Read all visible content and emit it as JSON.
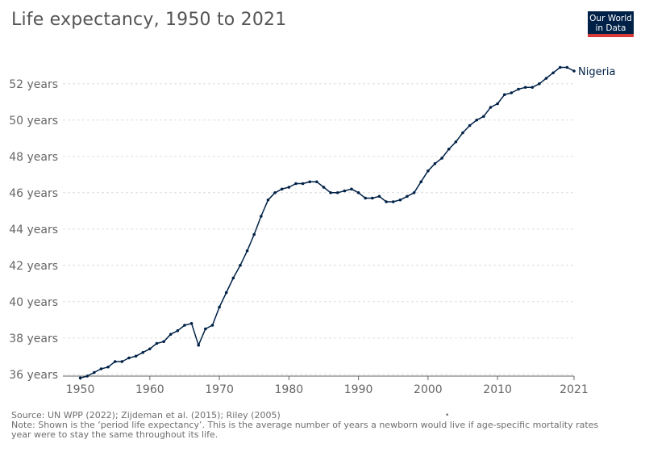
{
  "header": {
    "title": "Life expectancy, 1950 to 2021",
    "logo_line1": "Our World",
    "logo_line2": "in Data"
  },
  "footer": {
    "source": "Source: UN WPP (2022); Zijdeman et al. (2015); Riley (2005)",
    "note_line1": "Note: Shown is the ‘period life expectancy’. This is the average number of years a newborn would live if age-specific mortality rates",
    "note_line2": "year were to stay the same throughout its life.",
    "bullet": "•"
  },
  "colors": {
    "series": "#002147",
    "grid": "#dddddd",
    "axis": "#666666",
    "tick_text": "#666666"
  },
  "chart_data": {
    "type": "line",
    "title": "Life expectancy, 1950 to 2021",
    "xlabel": "",
    "ylabel": "",
    "xlim": [
      1947.5,
      2021
    ],
    "ylim": [
      35.9,
      53.5
    ],
    "grid": true,
    "x_ticks": [
      1950,
      1960,
      1970,
      1980,
      1990,
      2000,
      2010,
      2021
    ],
    "y_ticks": [
      {
        "value": 36,
        "label": "36 years"
      },
      {
        "value": 38,
        "label": "38 years"
      },
      {
        "value": 40,
        "label": "40 years"
      },
      {
        "value": 42,
        "label": "42 years"
      },
      {
        "value": 44,
        "label": "44 years"
      },
      {
        "value": 46,
        "label": "46 years"
      },
      {
        "value": 48,
        "label": "48 years"
      },
      {
        "value": 50,
        "label": "50 years"
      },
      {
        "value": 52,
        "label": "52 years"
      }
    ],
    "series": [
      {
        "name": "Nigeria",
        "x": [
          1950,
          1951,
          1952,
          1953,
          1954,
          1955,
          1956,
          1957,
          1958,
          1959,
          1960,
          1961,
          1962,
          1963,
          1964,
          1965,
          1966,
          1967,
          1968,
          1969,
          1970,
          1971,
          1972,
          1973,
          1974,
          1975,
          1976,
          1977,
          1978,
          1979,
          1980,
          1981,
          1982,
          1983,
          1984,
          1985,
          1986,
          1987,
          1988,
          1989,
          1990,
          1991,
          1992,
          1993,
          1994,
          1995,
          1996,
          1997,
          1998,
          1999,
          2000,
          2001,
          2002,
          2003,
          2004,
          2005,
          2006,
          2007,
          2008,
          2009,
          2010,
          2011,
          2012,
          2013,
          2014,
          2015,
          2016,
          2017,
          2018,
          2019,
          2020,
          2021
        ],
        "values": [
          35.8,
          35.9,
          36.1,
          36.3,
          36.4,
          36.7,
          36.7,
          36.9,
          37.0,
          37.2,
          37.4,
          37.7,
          37.8,
          38.2,
          38.4,
          38.7,
          38.8,
          37.6,
          38.5,
          38.7,
          39.7,
          40.5,
          41.3,
          42.0,
          42.8,
          43.7,
          44.7,
          45.6,
          46.0,
          46.2,
          46.3,
          46.5,
          46.5,
          46.6,
          46.6,
          46.3,
          46.0,
          46.0,
          46.1,
          46.2,
          46.0,
          45.7,
          45.7,
          45.8,
          45.5,
          45.5,
          45.6,
          45.8,
          46.0,
          46.6,
          47.2,
          47.6,
          47.9,
          48.4,
          48.8,
          49.3,
          49.7,
          50.0,
          50.2,
          50.7,
          50.9,
          51.4,
          51.5,
          51.7,
          51.8,
          51.8,
          52.0,
          52.3,
          52.6,
          52.9,
          52.9,
          52.7
        ]
      }
    ]
  }
}
